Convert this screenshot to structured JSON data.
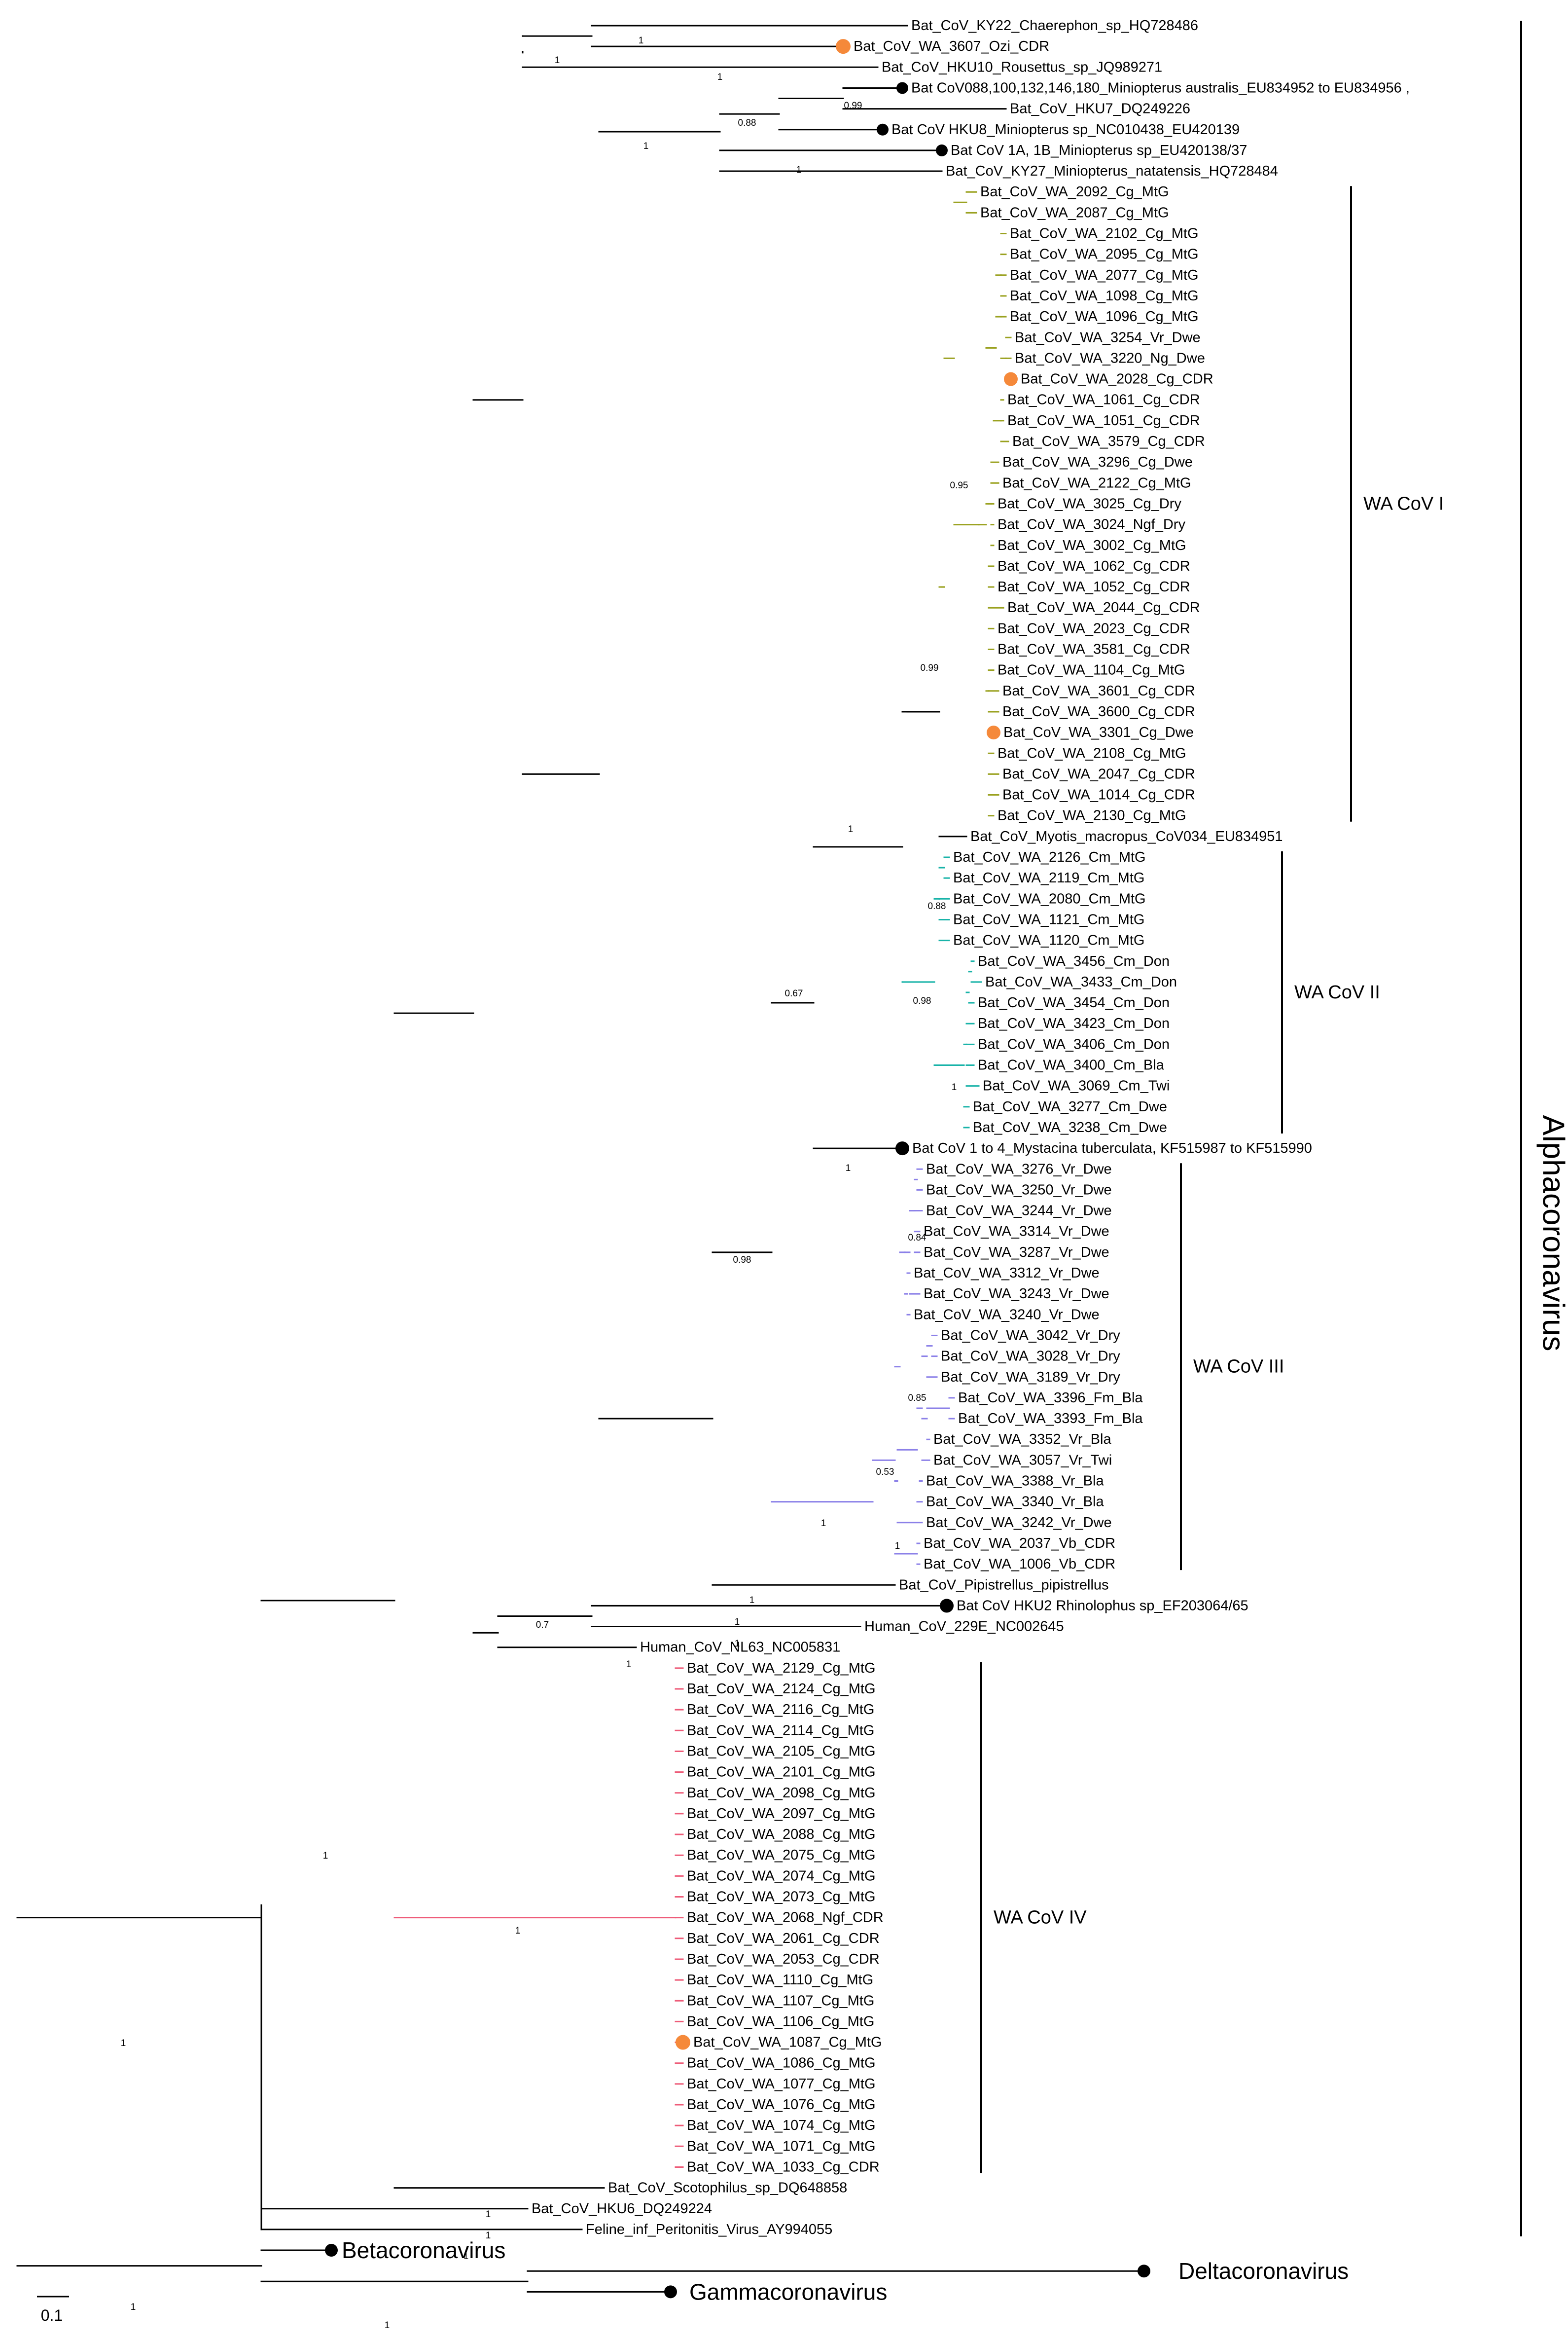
{
  "colors": {
    "wa1": "#9aa11f",
    "wa2": "#18b3a8",
    "wa3": "#8b80e8",
    "wa4": "#ee5b78",
    "highlight": "#f5893a",
    "black": "#000000"
  },
  "clades": {
    "wa1": "WA CoV I",
    "wa2": "WA CoV II",
    "wa3": "WA CoV III",
    "wa4": "WA CoV IV",
    "alpha": "Alphacoronavirus"
  },
  "genera": {
    "beta": "Betacoronavirus",
    "delta": "Deltacoronavirus",
    "gamma": "Gammacoronavirus"
  },
  "scale": {
    "label": "0.1"
  },
  "top_leaves": [
    "Bat_CoV_KY22_Chaerephon_sp_HQ728486",
    "Bat_CoV_WA_3607_Ozi_CDR",
    "Bat_CoV_HKU10_Rousettus_sp_JQ989271",
    "Bat CoV088,100,132,146,180_Miniopterus australis_EU834952 to EU834956 ,",
    "Bat_CoV_HKU7_DQ249226",
    "Bat CoV HKU8_Miniopterus sp_NC010438_EU420139",
    "Bat CoV 1A, 1B_Miniopterus sp_EU420138/37",
    "Bat_CoV_KY27_Miniopterus_natatensis_HQ728484"
  ],
  "wa1_leaves": [
    "Bat_CoV_WA_2092_Cg_MtG",
    "Bat_CoV_WA_2087_Cg_MtG",
    "Bat_CoV_WA_2102_Cg_MtG",
    "Bat_CoV_WA_2095_Cg_MtG",
    "Bat_CoV_WA_2077_Cg_MtG",
    "Bat_CoV_WA_1098_Cg_MtG",
    "Bat_CoV_WA_1096_Cg_MtG",
    "Bat_CoV_WA_3254_Vr_Dwe",
    "Bat_CoV_WA_3220_Ng_Dwe",
    "Bat_CoV_WA_2028_Cg_CDR",
    "Bat_CoV_WA_1061_Cg_CDR",
    "Bat_CoV_WA_1051_Cg_CDR",
    "Bat_CoV_WA_3579_Cg_CDR",
    "Bat_CoV_WA_3296_Cg_Dwe",
    "Bat_CoV_WA_2122_Cg_MtG",
    "Bat_CoV_WA_3025_Cg_Dry",
    "Bat_CoV_WA_3024_Ngf_Dry",
    "Bat_CoV_WA_3002_Cg_MtG",
    "Bat_CoV_WA_1062_Cg_CDR",
    "Bat_CoV_WA_1052_Cg_CDR",
    "Bat_CoV_WA_2044_Cg_CDR",
    "Bat_CoV_WA_2023_Cg_CDR",
    "Bat_CoV_WA_3581_Cg_CDR",
    "Bat_CoV_WA_1104_Cg_MtG",
    "Bat_CoV_WA_3601_Cg_CDR",
    "Bat_CoV_WA_3600_Cg_CDR",
    "Bat_CoV_WA_3301_Cg_Dwe",
    "Bat_CoV_WA_2108_Cg_MtG",
    "Bat_CoV_WA_2047_Cg_CDR",
    "Bat_CoV_WA_1014_Cg_CDR",
    "Bat_CoV_WA_2130_Cg_MtG"
  ],
  "myotis_leaf": "Bat_CoV_Myotis_macropus_CoV034_EU834951",
  "wa2_leaves": [
    "Bat_CoV_WA_2126_Cm_MtG",
    "Bat_CoV_WA_2119_Cm_MtG",
    "Bat_CoV_WA_2080_Cm_MtG",
    "Bat_CoV_WA_1121_Cm_MtG",
    "Bat_CoV_WA_1120_Cm_MtG",
    "Bat_CoV_WA_3456_Cm_Don",
    "Bat_CoV_WA_3433_Cm_Don",
    "Bat_CoV_WA_3454_Cm_Don",
    "Bat_CoV_WA_3423_Cm_Don",
    "Bat_CoV_WA_3406_Cm_Don",
    "Bat_CoV_WA_3400_Cm_Bla",
    "Bat_CoV_WA_3069_Cm_Twi",
    "Bat_CoV_WA_3277_Cm_Dwe",
    "Bat_CoV_WA_3238_Cm_Dwe"
  ],
  "mystacina_leaf": "Bat CoV 1 to 4_Mystacina tuberculata, KF515987 to KF515990",
  "wa3_leaves": [
    "Bat_CoV_WA_3276_Vr_Dwe",
    "Bat_CoV_WA_3250_Vr_Dwe",
    "Bat_CoV_WA_3244_Vr_Dwe",
    "Bat_CoV_WA_3314_Vr_Dwe",
    "Bat_CoV_WA_3287_Vr_Dwe",
    "Bat_CoV_WA_3312_Vr_Dwe",
    "Bat_CoV_WA_3243_Vr_Dwe",
    "Bat_CoV_WA_3240_Vr_Dwe",
    "Bat_CoV_WA_3042_Vr_Dry",
    "Bat_CoV_WA_3028_Vr_Dry",
    "Bat_CoV_WA_3189_Vr_Dry",
    "Bat_CoV_WA_3396_Fm_Bla",
    "Bat_CoV_WA_3393_Fm_Bla",
    "Bat_CoV_WA_3352_Vr_Bla",
    "Bat_CoV_WA_3057_Vr_Twi",
    "Bat_CoV_WA_3388_Vr_Bla",
    "Bat_CoV_WA_3340_Vr_Bla",
    "Bat_CoV_WA_3242_Vr_Dwe",
    "Bat_CoV_WA_2037_Vb_CDR",
    "Bat_CoV_WA_1006_Vb_CDR"
  ],
  "mid_leaves": [
    "Bat_CoV_Pipistrellus_pipistrellus",
    "Bat CoV HKU2 Rhinolophus sp_EF203064/65",
    "Human_CoV_229E_NC002645",
    "Human_CoV_NL63_NC005831"
  ],
  "wa4_leaves": [
    "Bat_CoV_WA_2129_Cg_MtG",
    "Bat_CoV_WA_2124_Cg_MtG",
    "Bat_CoV_WA_2116_Cg_MtG",
    "Bat_CoV_WA_2114_Cg_MtG",
    "Bat_CoV_WA_2105_Cg_MtG",
    "Bat_CoV_WA_2101_Cg_MtG",
    "Bat_CoV_WA_2098_Cg_MtG",
    "Bat_CoV_WA_2097_Cg_MtG",
    "Bat_CoV_WA_2088_Cg_MtG",
    "Bat_CoV_WA_2075_Cg_MtG",
    "Bat_CoV_WA_2074_Cg_MtG",
    "Bat_CoV_WA_2073_Cg_MtG",
    "Bat_CoV_WA_2068_Ngf_CDR",
    "Bat_CoV_WA_2061_Cg_CDR",
    "Bat_CoV_WA_2053_Cg_CDR",
    "Bat_CoV_WA_1110_Cg_MtG",
    "Bat_CoV_WA_1107_Cg_MtG",
    "Bat_CoV_WA_1106_Cg_MtG",
    "Bat_CoV_WA_1087_Cg_MtG",
    "Bat_CoV_WA_1086_Cg_MtG",
    "Bat_CoV_WA_1077_Cg_MtG",
    "Bat_CoV_WA_1076_Cg_MtG",
    "Bat_CoV_WA_1074_Cg_MtG",
    "Bat_CoV_WA_1071_Cg_MtG",
    "Bat_CoV_WA_1033_Cg_CDR"
  ],
  "bottom_leaves": [
    "Bat_CoV_Scotophilus_sp_DQ648858",
    "Bat_CoV_HKU6_DQ249224",
    "Feline_inf_Peritonitis_Virus_AY994055"
  ],
  "support": {
    "n1": "1",
    "n088": "0.88",
    "n099": "0.99",
    "n095": "0.95",
    "n067": "0.67",
    "n098": "0.98",
    "n084": "0.84",
    "n085": "0.85",
    "n053": "0.53",
    "n07": "0.7"
  }
}
